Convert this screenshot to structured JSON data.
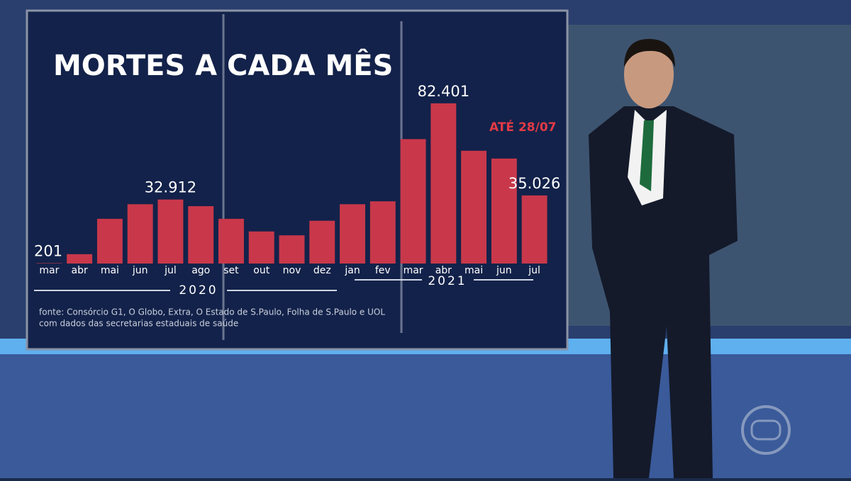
{
  "chart_data": {
    "type": "bar",
    "title": "MORTES A CADA MÊS",
    "categories": [
      "mar",
      "abr",
      "mai",
      "jun",
      "jul",
      "ago",
      "set",
      "out",
      "nov",
      "dez",
      "jan",
      "fev",
      "mar",
      "abr",
      "mai",
      "jun",
      "jul"
    ],
    "values": [
      201,
      4800,
      23000,
      30500,
      32912,
      29500,
      23000,
      16500,
      14500,
      22000,
      30500,
      32000,
      64000,
      82401,
      58000,
      54000,
      35026
    ],
    "value_labels": [
      "201",
      null,
      null,
      null,
      "32.912",
      null,
      null,
      null,
      null,
      null,
      null,
      null,
      null,
      "82.401",
      null,
      null,
      "35.026"
    ],
    "color": "#c8384a",
    "ylim": [
      0,
      90000
    ],
    "annotation": "ATÉ 28/07",
    "year_labels": [
      "2020",
      "2021"
    ],
    "source": [
      "fonte: Consórcio G1, O Globo, Extra, O Estado de S.Paulo, Folha de S.Paulo e UOL",
      "com dados das secretarias estaduais de saúde"
    ]
  }
}
